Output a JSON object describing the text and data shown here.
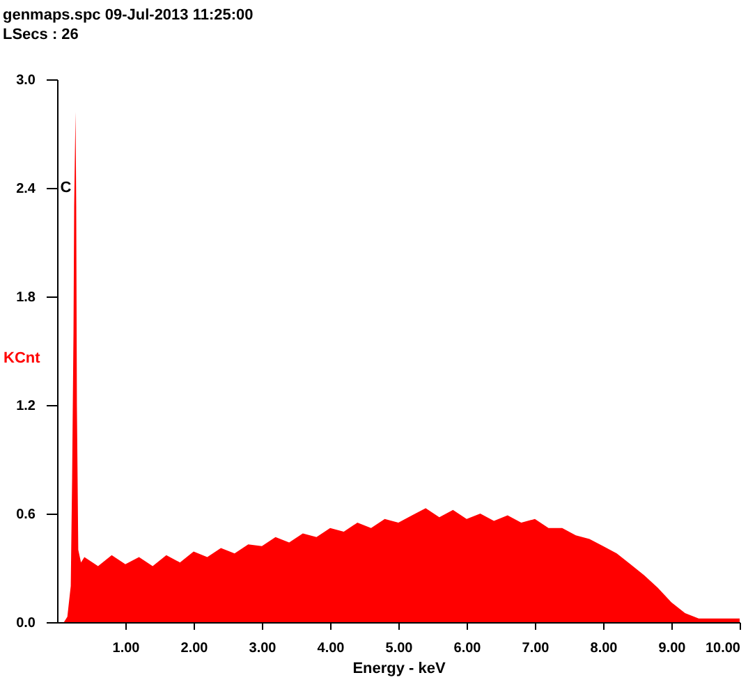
{
  "chart_data": {
    "type": "area",
    "title": "genmaps.spc  09-Jul-2013 11:25:00",
    "subtitle": "LSecs :  26",
    "xlabel": "Energy - keV",
    "ylabel": "KCnt",
    "xlim": [
      0,
      10
    ],
    "ylim": [
      0,
      3
    ],
    "xticks": [
      {
        "value": 1,
        "label": "1.00"
      },
      {
        "value": 2,
        "label": "2.00"
      },
      {
        "value": 3,
        "label": "3.00"
      },
      {
        "value": 4,
        "label": "4.00"
      },
      {
        "value": 5,
        "label": "5.00"
      },
      {
        "value": 6,
        "label": "6.00"
      },
      {
        "value": 7,
        "label": "7.00"
      },
      {
        "value": 8,
        "label": "8.00"
      },
      {
        "value": 9,
        "label": "9.00"
      },
      {
        "value": 10,
        "label": "10.00"
      }
    ],
    "yticks": [
      {
        "value": 0,
        "label": "0.0"
      },
      {
        "value": 0.6,
        "label": "0.6"
      },
      {
        "value": 1.2,
        "label": "1.2"
      },
      {
        "value": 1.8,
        "label": "1.8"
      },
      {
        "value": 2.4,
        "label": "2.4"
      },
      {
        "value": 3,
        "label": "3.0"
      }
    ],
    "annotations": [
      {
        "text": "C",
        "x": 0.27,
        "y": 2.4
      }
    ],
    "series": [
      {
        "color": "#ff0000",
        "x": [
          0,
          0.1,
          0.15,
          0.2,
          0.22,
          0.24,
          0.25,
          0.27,
          0.28,
          0.29,
          0.31,
          0.35,
          0.4,
          0.6,
          0.8,
          1.0,
          1.2,
          1.4,
          1.6,
          1.8,
          2.0,
          2.2,
          2.4,
          2.6,
          2.8,
          3.0,
          3.2,
          3.4,
          3.6,
          3.8,
          4.0,
          4.2,
          4.4,
          4.6,
          4.8,
          5.0,
          5.2,
          5.4,
          5.6,
          5.8,
          6.0,
          6.2,
          6.4,
          6.6,
          6.8,
          7.0,
          7.2,
          7.4,
          7.6,
          7.8,
          8.0,
          8.2,
          8.4,
          8.6,
          8.8,
          9.0,
          9.2,
          9.4,
          9.6,
          9.8,
          10
        ],
        "values": [
          0,
          0,
          0.03,
          0.2,
          0.8,
          1.6,
          2.3,
          2.82,
          2.3,
          1.2,
          0.4,
          0.33,
          0.36,
          0.31,
          0.37,
          0.32,
          0.36,
          0.31,
          0.37,
          0.33,
          0.39,
          0.36,
          0.41,
          0.38,
          0.43,
          0.42,
          0.47,
          0.44,
          0.49,
          0.47,
          0.52,
          0.5,
          0.55,
          0.52,
          0.57,
          0.55,
          0.59,
          0.63,
          0.58,
          0.62,
          0.57,
          0.6,
          0.56,
          0.59,
          0.55,
          0.57,
          0.52,
          0.52,
          0.48,
          0.46,
          0.42,
          0.38,
          0.32,
          0.26,
          0.19,
          0.11,
          0.05,
          0.02,
          0.02,
          0.02,
          0.02
        ]
      }
    ]
  }
}
